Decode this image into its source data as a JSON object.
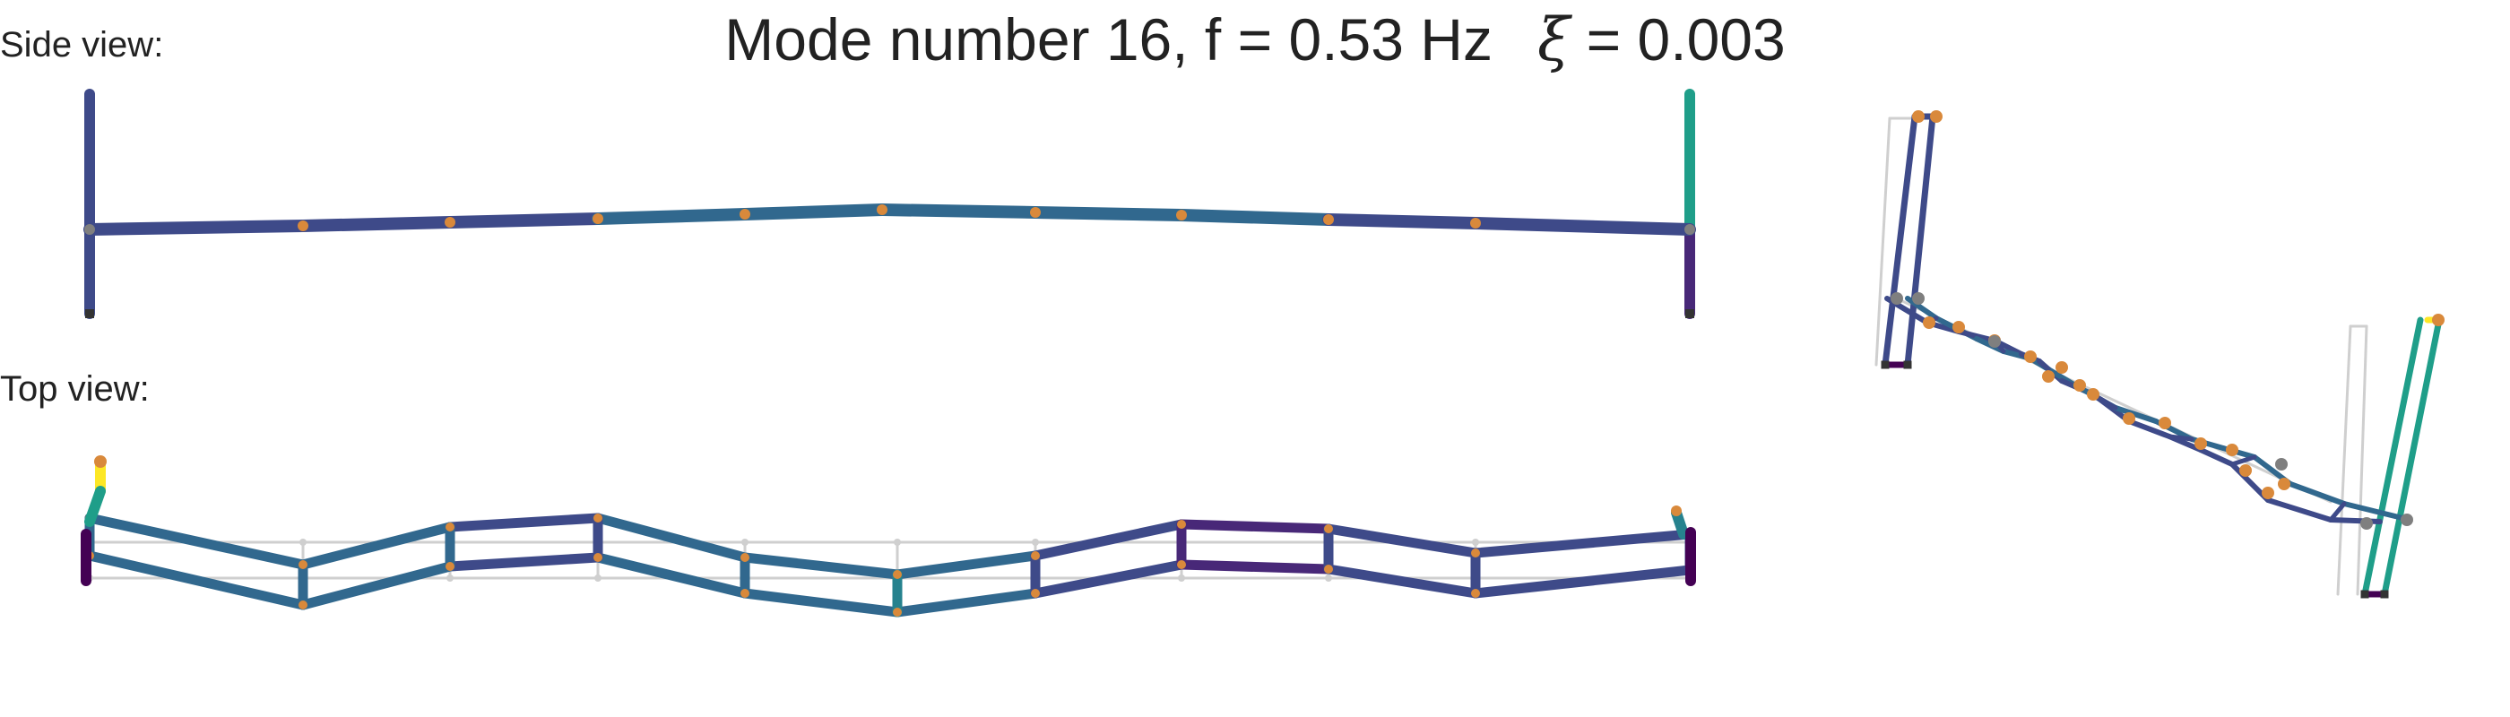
{
  "title": {
    "mode_text": "Mode number 16, f = 0.53 Hz",
    "damping_symbol": "ξ",
    "damping_value": " = 0.003"
  },
  "views": {
    "side_label": "Side view:",
    "top_label": "Top view:"
  },
  "colors": {
    "background": "#ffffff",
    "text": "#222222",
    "node_inner": "#d9893b",
    "node_end": "#7f7f7f",
    "support": "#333333",
    "undeformed": "#cfcfcf",
    "colormap": [
      "#440154",
      "#482878",
      "#3e4a89",
      "#31688e",
      "#26828e",
      "#1f9e89",
      "#35b779",
      "#6ece58",
      "#b5de2b",
      "#fde725"
    ]
  },
  "mode": {
    "number": 16,
    "frequency_hz": 0.53,
    "damping_ratio": 0.003
  }
}
